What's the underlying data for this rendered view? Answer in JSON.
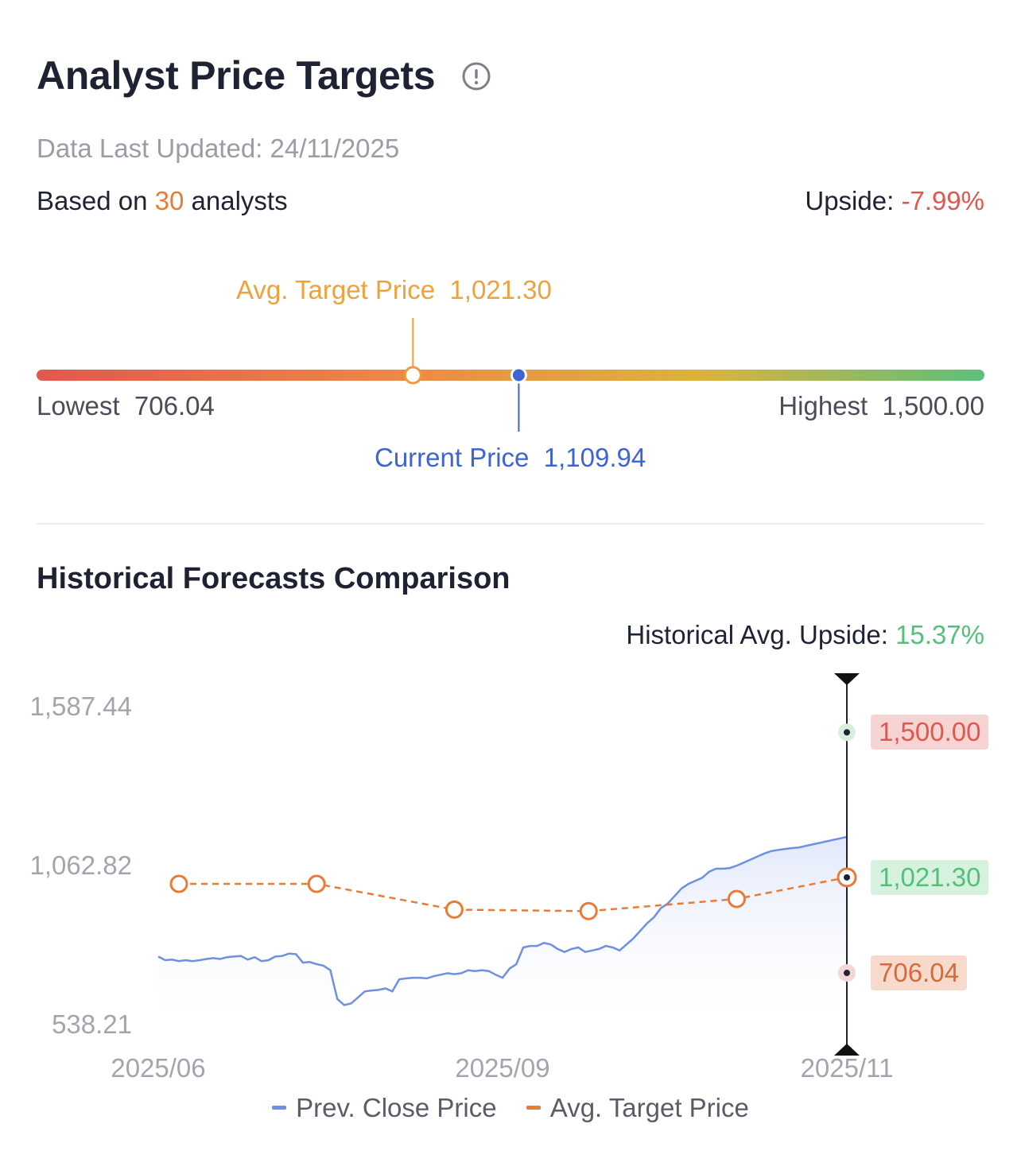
{
  "header": {
    "title": "Analyst Price Targets",
    "info_icon": "info-circle-icon",
    "updated": "Data Last Updated: 24/11/2025",
    "based_prefix": "Based on ",
    "analyst_count": "30",
    "based_suffix": " analysts",
    "upside_label": "Upside: ",
    "upside_value": "-7.99%"
  },
  "range": {
    "avg_label": "Avg. Target Price",
    "avg_value": "1,021.30",
    "current_label": "Current Price",
    "current_value": "1,109.94",
    "lowest_label": "Lowest",
    "lowest_value": "706.04",
    "highest_label": "Highest",
    "highest_value": "1,500.00",
    "min": 706.04,
    "max": 1500.0,
    "avg": 1021.3,
    "current": 1109.94
  },
  "history": {
    "title": "Historical Forecasts Comparison",
    "upside_label": "Historical Avg. Upside: ",
    "upside_value": "15.37%"
  },
  "colors": {
    "close": "#6f8fe0",
    "target": "#ea7a35",
    "high": "#e2564f",
    "avg_tag": "#53c07a",
    "low_tag": "#d8693a"
  },
  "chart_data": {
    "type": "line",
    "ylim": [
      538.21,
      1587.44
    ],
    "y_ticks": [
      "1,587.44",
      "1,062.82",
      "538.21"
    ],
    "x_ticks": [
      "2025/06",
      "2025/09",
      "2025/11"
    ],
    "legend": [
      "Prev. Close Price",
      "Avg. Target Price"
    ],
    "series": [
      {
        "name": "Prev. Close Price",
        "x": [
          0,
          0.01,
          0.02,
          0.03,
          0.04,
          0.05,
          0.06,
          0.07,
          0.08,
          0.09,
          0.1,
          0.11,
          0.12,
          0.13,
          0.14,
          0.15,
          0.16,
          0.17,
          0.18,
          0.19,
          0.2,
          0.21,
          0.22,
          0.23,
          0.24,
          0.25,
          0.26,
          0.27,
          0.28,
          0.29,
          0.3,
          0.31,
          0.32,
          0.33,
          0.34,
          0.35,
          0.36,
          0.37,
          0.38,
          0.39,
          0.4,
          0.41,
          0.42,
          0.43,
          0.44,
          0.45,
          0.46,
          0.47,
          0.48,
          0.49,
          0.5,
          0.51,
          0.52,
          0.53,
          0.54,
          0.55,
          0.56,
          0.57,
          0.58,
          0.59,
          0.6,
          0.61,
          0.62,
          0.63,
          0.64,
          0.65,
          0.66,
          0.67,
          0.68,
          0.69,
          0.7,
          0.71,
          0.72,
          0.73,
          0.74,
          0.75,
          0.76,
          0.77,
          0.78,
          0.79,
          0.8,
          0.81,
          0.82,
          0.83,
          0.84,
          0.85,
          0.86,
          0.87,
          0.88,
          0.89,
          0.9,
          0.91,
          0.92,
          0.93,
          0.94,
          0.95,
          0.96,
          0.97,
          0.98,
          0.99,
          1.0
        ],
        "values": [
          760,
          748,
          750,
          745,
          748,
          745,
          748,
          752,
          755,
          752,
          758,
          760,
          762,
          750,
          758,
          745,
          748,
          760,
          762,
          770,
          768,
          740,
          742,
          735,
          730,
          715,
          620,
          600,
          605,
          625,
          645,
          648,
          650,
          655,
          645,
          685,
          688,
          690,
          690,
          688,
          695,
          700,
          705,
          702,
          705,
          715,
          712,
          715,
          712,
          700,
          690,
          720,
          735,
          790,
          795,
          795,
          805,
          800,
          785,
          775,
          785,
          790,
          775,
          780,
          785,
          795,
          790,
          780,
          800,
          820,
          845,
          870,
          890,
          920,
          935,
          960,
          985,
          1000,
          1010,
          1020,
          1040,
          1050,
          1050,
          1052,
          1060,
          1070,
          1080,
          1090,
          1100,
          1108,
          1112,
          1115,
          1118,
          1120,
          1125,
          1130,
          1135,
          1140,
          1145,
          1150,
          1155
        ]
      },
      {
        "name": "Avg. Target Price",
        "x": [
          0.03,
          0.23,
          0.43,
          0.625,
          0.84,
          1.0
        ],
        "values": [
          1000,
          1000,
          915,
          910,
          950,
          1021.3
        ]
      }
    ],
    "crosshair_values": {
      "high": "1,500.00",
      "avg": "1,021.30",
      "low": "706.04"
    }
  }
}
